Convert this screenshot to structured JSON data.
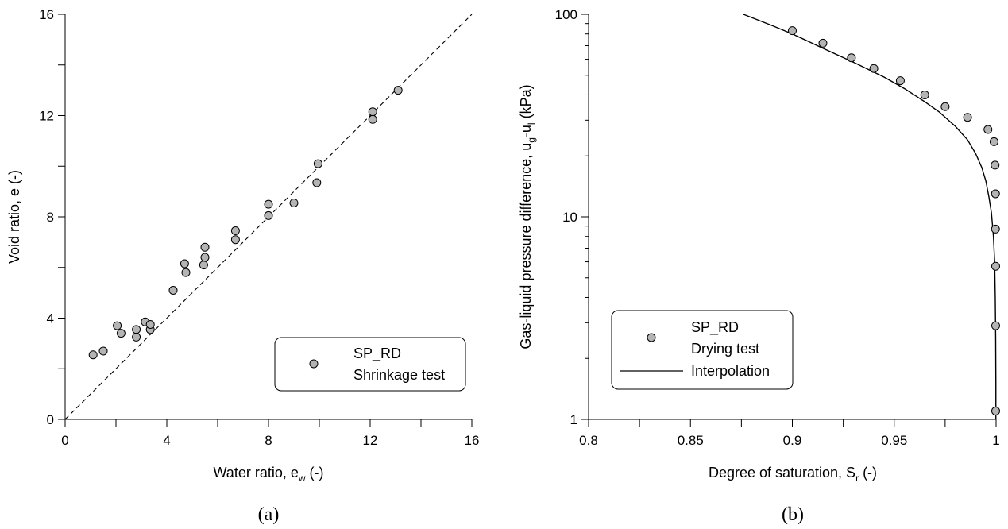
{
  "chart_data": [
    {
      "type": "scatter",
      "panel_label": "(a)",
      "xlabel_main": "Water ratio, e",
      "xlabel_sub": "w",
      "xlabel_tail": " (-)",
      "ylabel": "Void ratio, e (-)",
      "xlim": [
        0,
        16
      ],
      "ylim": [
        0,
        16
      ],
      "xticks": [
        0,
        4,
        8,
        12,
        16
      ],
      "yticks": [
        0,
        4,
        8,
        12,
        16
      ],
      "xtick_labels": [
        "0",
        "4",
        "8",
        "12",
        "16"
      ],
      "ytick_labels": [
        "0",
        "4",
        "8",
        "12",
        "16"
      ],
      "reference_line": {
        "style": "dashed",
        "x": [
          0,
          16
        ],
        "y": [
          0,
          16
        ]
      },
      "legend": {
        "placement": "bottom-right",
        "line1": "SP_RD",
        "line2": "Shrinkage test"
      },
      "series": [
        {
          "marker": "circle",
          "color": "#b4b4b4",
          "x": [
            1.1,
            1.5,
            2.05,
            2.2,
            2.8,
            2.8,
            3.15,
            3.35,
            3.35,
            4.25,
            4.7,
            4.75,
            5.45,
            5.5,
            5.5,
            6.7,
            6.7,
            8.0,
            8.0,
            9.0,
            9.9,
            9.95,
            12.1,
            12.1,
            13.1
          ],
          "y": [
            2.55,
            2.7,
            3.7,
            3.4,
            3.55,
            3.25,
            3.85,
            3.55,
            3.75,
            5.1,
            6.15,
            5.8,
            6.1,
            6.4,
            6.8,
            7.45,
            7.1,
            8.5,
            8.05,
            8.55,
            9.35,
            10.1,
            12.15,
            11.85,
            13.0
          ]
        }
      ]
    },
    {
      "type": "line",
      "panel_label": "(b)",
      "xlabel_main": "Degree of saturation, S",
      "xlabel_sub": "r",
      "xlabel_tail": " (-)",
      "ylabel_pre": "Gas-liquid pressure difference, u",
      "ylabel_sub1": "g",
      "ylabel_mid": "-u",
      "ylabel_sub2": "l",
      "ylabel_tail": " (kPa)",
      "xlim": [
        0.8,
        1.0
      ],
      "ylim": [
        1,
        100
      ],
      "yscale": "log",
      "xticks": [
        0.8,
        0.85,
        0.9,
        0.95,
        1.0
      ],
      "xtick_labels": [
        "0.8",
        "0.85",
        "0.9",
        "0.95",
        "1"
      ],
      "yticks": [
        1,
        10,
        100
      ],
      "ytick_labels": [
        "1",
        "10",
        "100"
      ],
      "legend": {
        "placement": "bottom-left",
        "line1": "SP_RD",
        "line2": "Drying test",
        "line3": "Interpolation"
      },
      "points": {
        "marker": "circle",
        "color": "#b4b4b4",
        "x": [
          0.9,
          0.915,
          0.929,
          0.94,
          0.953,
          0.965,
          0.975,
          0.986,
          0.996,
          0.999,
          0.9995,
          0.9997,
          0.9997,
          0.9998,
          0.9998,
          0.9998
        ],
        "y": [
          83,
          72,
          61,
          54,
          47,
          40,
          35,
          31,
          27,
          23.5,
          18,
          13,
          8.7,
          5.7,
          2.9,
          1.1
        ]
      },
      "curve": {
        "style": "solid",
        "x": [
          0.876,
          0.89,
          0.9,
          0.915,
          0.93,
          0.945,
          0.955,
          0.965,
          0.972,
          0.98,
          0.986,
          0.99,
          0.993,
          0.995,
          0.9965,
          0.9977,
          0.9987,
          0.9993,
          0.9996,
          0.9998,
          0.9999,
          0.9999
        ],
        "y": [
          100,
          88,
          80,
          68,
          58,
          49,
          43,
          37,
          33,
          28,
          24,
          20.5,
          17.5,
          15,
          12.5,
          10.5,
          8,
          6,
          4,
          2.5,
          1.5,
          1
        ]
      }
    }
  ]
}
